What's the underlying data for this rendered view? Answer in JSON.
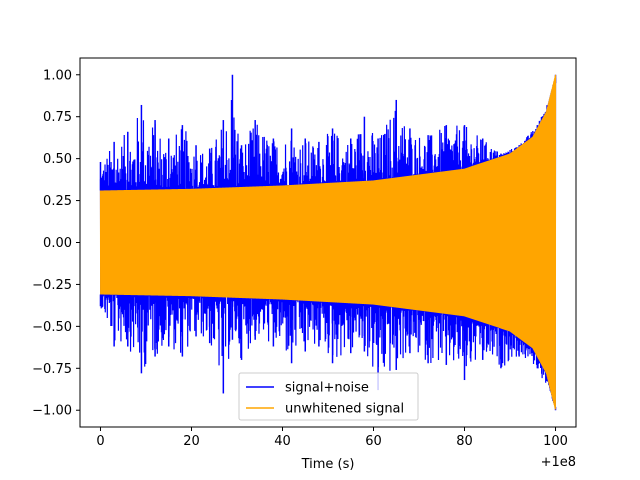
{
  "chart_data": {
    "type": "line",
    "title": "",
    "xlabel": "Time (s)",
    "ylabel": "",
    "x_offset_label": "+1e8",
    "xlim": [
      -4.5,
      104.5
    ],
    "ylim": [
      -1.1,
      1.1
    ],
    "xticks": [
      0,
      20,
      40,
      60,
      80,
      100
    ],
    "xtick_labels": [
      "0",
      "20",
      "40",
      "60",
      "80",
      "100"
    ],
    "yticks": [
      1.0,
      0.75,
      0.5,
      0.25,
      0.0,
      -0.25,
      -0.5,
      -0.75,
      -1.0
    ],
    "ytick_labels": [
      "1.00",
      "0.75",
      "0.50",
      "0.25",
      "0.00",
      "−0.25",
      "−0.50",
      "−0.75",
      "−1.00"
    ],
    "grid": false,
    "legend_position": "bottom-center",
    "series": [
      {
        "name": "signal+noise",
        "color": "#0000ff",
        "description": "oscillatory chirp plus noise, normalized to peak 1.0",
        "envelope_upper": [
          [
            0,
            0.48
          ],
          [
            3,
            0.6
          ],
          [
            6,
            0.66
          ],
          [
            9,
            0.82
          ],
          [
            12,
            0.73
          ],
          [
            15,
            0.62
          ],
          [
            18,
            0.7
          ],
          [
            21,
            0.58
          ],
          [
            24,
            0.56
          ],
          [
            27,
            0.73
          ],
          [
            29,
            1.0
          ],
          [
            31,
            0.58
          ],
          [
            34,
            0.73
          ],
          [
            38,
            0.62
          ],
          [
            42,
            0.68
          ],
          [
            45,
            0.62
          ],
          [
            48,
            0.6
          ],
          [
            51,
            0.68
          ],
          [
            55,
            0.62
          ],
          [
            58,
            0.75
          ],
          [
            61,
            0.62
          ],
          [
            65,
            0.85
          ],
          [
            68,
            0.68
          ],
          [
            72,
            0.64
          ],
          [
            76,
            0.7
          ],
          [
            80,
            0.7
          ],
          [
            84,
            0.62
          ],
          [
            88,
            0.53
          ],
          [
            92,
            0.58
          ],
          [
            96,
            0.7
          ],
          [
            100,
            0.95
          ]
        ],
        "envelope_lower": [
          [
            0,
            -0.38
          ],
          [
            3,
            -0.62
          ],
          [
            6,
            -0.62
          ],
          [
            9,
            -0.78
          ],
          [
            12,
            -0.68
          ],
          [
            15,
            -0.62
          ],
          [
            18,
            -0.68
          ],
          [
            21,
            -0.56
          ],
          [
            24,
            -0.6
          ],
          [
            27,
            -0.9
          ],
          [
            29,
            -0.58
          ],
          [
            31,
            -0.7
          ],
          [
            34,
            -0.58
          ],
          [
            38,
            -0.62
          ],
          [
            42,
            -0.72
          ],
          [
            45,
            -0.65
          ],
          [
            48,
            -0.62
          ],
          [
            51,
            -0.72
          ],
          [
            55,
            -0.66
          ],
          [
            58,
            -0.65
          ],
          [
            61,
            -0.88
          ],
          [
            65,
            -0.76
          ],
          [
            68,
            -0.66
          ],
          [
            72,
            -0.72
          ],
          [
            76,
            -0.73
          ],
          [
            80,
            -0.82
          ],
          [
            84,
            -0.7
          ],
          [
            88,
            -0.75
          ],
          [
            92,
            -0.68
          ],
          [
            96,
            -0.75
          ],
          [
            100,
            -0.98
          ]
        ]
      },
      {
        "name": "unwhitened signal",
        "color": "#ffa500",
        "description": "chirp with slowly growing amplitude, peak 1.0 at end",
        "amplitude_envelope": [
          [
            0,
            0.31
          ],
          [
            20,
            0.32
          ],
          [
            40,
            0.34
          ],
          [
            60,
            0.37
          ],
          [
            80,
            0.44
          ],
          [
            90,
            0.53
          ],
          [
            95,
            0.63
          ],
          [
            98,
            0.78
          ],
          [
            100,
            1.0
          ]
        ]
      }
    ]
  }
}
